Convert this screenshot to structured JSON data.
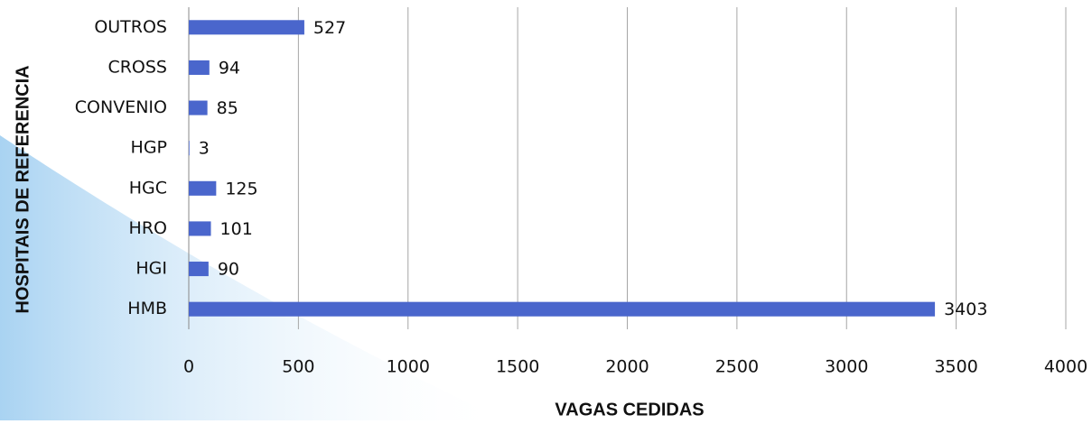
{
  "chart_data": {
    "type": "bar",
    "orientation": "horizontal",
    "categories": [
      "OUTROS",
      "CROSS",
      "CONVENIO",
      "HGP",
      "HGC",
      "HRO",
      "HGI",
      "HMB"
    ],
    "values": [
      527,
      94,
      85,
      3,
      125,
      101,
      90,
      3403
    ],
    "color": "#4a66cc",
    "xlim": [
      0,
      4000
    ],
    "xticks": [
      0,
      500,
      1000,
      1500,
      2000,
      2500,
      3000,
      3500,
      4000
    ],
    "grid": true,
    "x_label": "VAGAS CEDIDAS",
    "y_label": "HOSPITAIS DE REFERENCIA"
  }
}
